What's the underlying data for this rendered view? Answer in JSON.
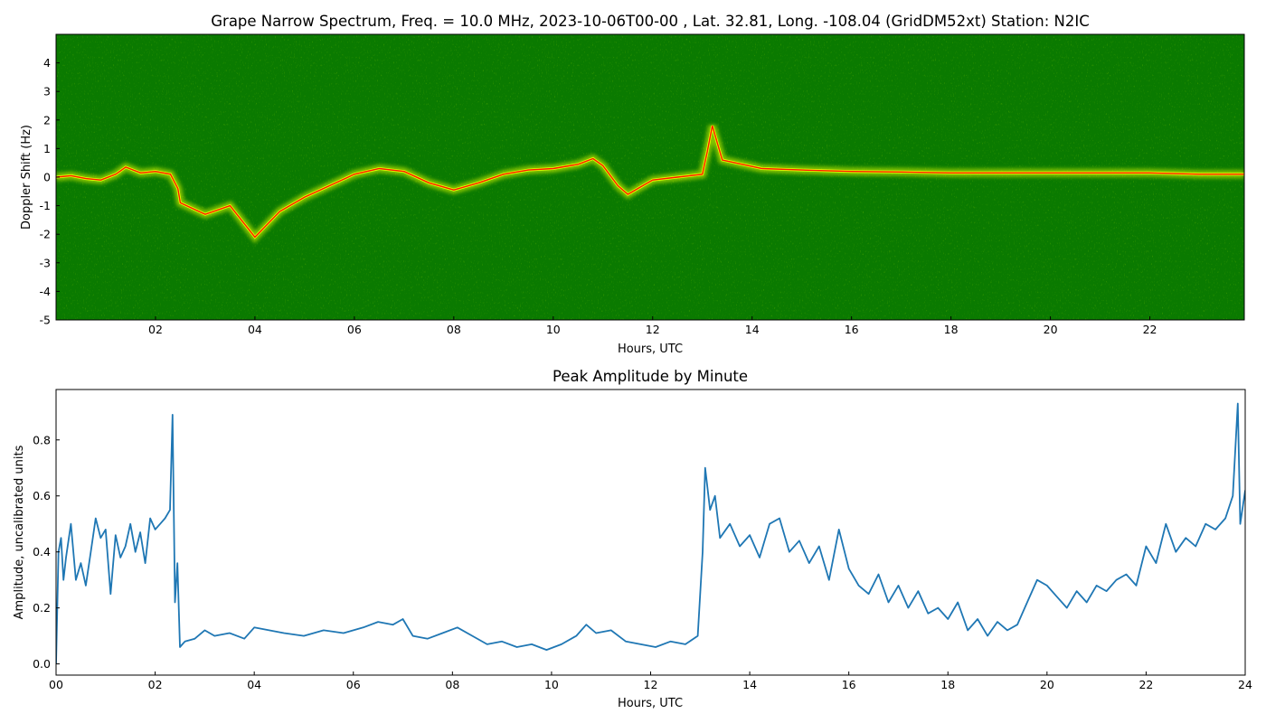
{
  "figure": {
    "background": "#ffffff"
  },
  "chart_data": [
    {
      "type": "heatmap",
      "title": "Grape Narrow Spectrum, Freq. = 10.0 MHz, 2023-10-06T00-00 , Lat.  32.81, Long. -108.04 (GridDM52xt) Station: N2IC",
      "xlabel": "Hours, UTC",
      "ylabel": "Doppler Shift (Hz)",
      "xlim": [
        0,
        23.9
      ],
      "ylim": [
        -5,
        5
      ],
      "xticks": [
        "02",
        "04",
        "06",
        "08",
        "10",
        "12",
        "14",
        "16",
        "18",
        "20",
        "22"
      ],
      "xtick_values": [
        2,
        4,
        6,
        8,
        10,
        12,
        14,
        16,
        18,
        20,
        22
      ],
      "yticks": [
        "-5",
        "-4",
        "-3",
        "-2",
        "-1",
        "0",
        "1",
        "2",
        "3",
        "4"
      ],
      "ytick_values": [
        -5,
        -4,
        -3,
        -2,
        -1,
        0,
        1,
        2,
        3,
        4
      ],
      "colormap": {
        "low": "#0a7a00",
        "mid": "#e8ff00",
        "high": "#ff1a00"
      },
      "peak_trace": {
        "x": [
          0,
          0.3,
          0.6,
          0.9,
          1.2,
          1.4,
          1.7,
          2.0,
          2.3,
          2.45,
          2.5,
          3.0,
          3.5,
          4.0,
          4.5,
          5.0,
          5.5,
          6.0,
          6.5,
          7.0,
          7.5,
          8.0,
          8.5,
          9.0,
          9.5,
          10.0,
          10.5,
          10.8,
          11.0,
          11.3,
          11.5,
          12.0,
          12.5,
          13.0,
          13.1,
          13.2,
          13.4,
          13.8,
          14.2,
          15,
          16,
          17,
          18,
          19,
          20,
          21,
          22,
          23,
          23.9
        ],
        "y": [
          0.0,
          0.05,
          -0.05,
          -0.1,
          0.1,
          0.35,
          0.15,
          0.2,
          0.1,
          -0.4,
          -0.9,
          -1.3,
          -1.0,
          -2.1,
          -1.2,
          -0.7,
          -0.3,
          0.1,
          0.3,
          0.2,
          -0.2,
          -0.45,
          -0.2,
          0.1,
          0.25,
          0.3,
          0.45,
          0.65,
          0.4,
          -0.3,
          -0.6,
          -0.1,
          0.0,
          0.1,
          0.9,
          1.8,
          0.6,
          0.45,
          0.3,
          0.25,
          0.2,
          0.18,
          0.15,
          0.15,
          0.15,
          0.15,
          0.15,
          0.1,
          0.1
        ]
      }
    },
    {
      "type": "line",
      "title": "Peak Amplitude by Minute",
      "xlabel": "Hours, UTC",
      "ylabel": "Amplitude, uncalibrated units",
      "xlim": [
        0,
        24
      ],
      "ylim": [
        -0.04,
        0.98
      ],
      "xticks": [
        "00",
        "02",
        "04",
        "06",
        "08",
        "10",
        "12",
        "14",
        "16",
        "18",
        "20",
        "22",
        "24"
      ],
      "xtick_values": [
        0,
        2,
        4,
        6,
        8,
        10,
        12,
        14,
        16,
        18,
        20,
        22,
        24
      ],
      "yticks": [
        "0.0",
        "0.2",
        "0.4",
        "0.6",
        "0.8"
      ],
      "ytick_values": [
        0,
        0.2,
        0.4,
        0.6,
        0.8
      ],
      "color": "#1f77b4",
      "x": [
        0,
        0.05,
        0.1,
        0.15,
        0.2,
        0.3,
        0.4,
        0.5,
        0.6,
        0.7,
        0.8,
        0.9,
        1.0,
        1.1,
        1.2,
        1.3,
        1.4,
        1.5,
        1.6,
        1.7,
        1.8,
        1.9,
        2.0,
        2.1,
        2.2,
        2.3,
        2.35,
        2.4,
        2.45,
        2.5,
        2.55,
        2.6,
        2.8,
        3.0,
        3.2,
        3.5,
        3.8,
        4.0,
        4.3,
        4.6,
        5.0,
        5.4,
        5.8,
        6.2,
        6.5,
        6.8,
        7.0,
        7.2,
        7.5,
        7.8,
        8.1,
        8.4,
        8.7,
        9.0,
        9.3,
        9.6,
        9.9,
        10.2,
        10.5,
        10.7,
        10.9,
        11.2,
        11.5,
        11.8,
        12.1,
        12.4,
        12.7,
        12.95,
        13.05,
        13.1,
        13.2,
        13.3,
        13.4,
        13.6,
        13.8,
        14.0,
        14.2,
        14.4,
        14.6,
        14.8,
        15.0,
        15.2,
        15.4,
        15.6,
        15.8,
        16.0,
        16.2,
        16.4,
        16.6,
        16.8,
        17.0,
        17.2,
        17.4,
        17.6,
        17.8,
        18.0,
        18.2,
        18.4,
        18.6,
        18.8,
        19.0,
        19.2,
        19.4,
        19.6,
        19.8,
        20.0,
        20.2,
        20.4,
        20.6,
        20.8,
        21.0,
        21.2,
        21.4,
        21.6,
        21.8,
        22.0,
        22.2,
        22.4,
        22.6,
        22.8,
        23.0,
        23.2,
        23.4,
        23.6,
        23.75,
        23.85,
        23.9,
        24.0
      ],
      "y": [
        0.0,
        0.4,
        0.45,
        0.3,
        0.38,
        0.5,
        0.3,
        0.36,
        0.28,
        0.4,
        0.52,
        0.45,
        0.48,
        0.25,
        0.46,
        0.38,
        0.42,
        0.5,
        0.4,
        0.47,
        0.36,
        0.52,
        0.48,
        0.5,
        0.52,
        0.55,
        0.89,
        0.22,
        0.36,
        0.06,
        0.07,
        0.08,
        0.09,
        0.12,
        0.1,
        0.11,
        0.09,
        0.13,
        0.12,
        0.11,
        0.1,
        0.12,
        0.11,
        0.13,
        0.15,
        0.14,
        0.16,
        0.1,
        0.09,
        0.11,
        0.13,
        0.1,
        0.07,
        0.08,
        0.06,
        0.07,
        0.05,
        0.07,
        0.1,
        0.14,
        0.11,
        0.12,
        0.08,
        0.07,
        0.06,
        0.08,
        0.07,
        0.1,
        0.4,
        0.7,
        0.55,
        0.6,
        0.45,
        0.5,
        0.42,
        0.46,
        0.38,
        0.5,
        0.52,
        0.4,
        0.44,
        0.36,
        0.42,
        0.3,
        0.48,
        0.34,
        0.28,
        0.25,
        0.32,
        0.22,
        0.28,
        0.2,
        0.26,
        0.18,
        0.2,
        0.16,
        0.22,
        0.12,
        0.16,
        0.1,
        0.15,
        0.12,
        0.14,
        0.22,
        0.3,
        0.28,
        0.24,
        0.2,
        0.26,
        0.22,
        0.28,
        0.26,
        0.3,
        0.32,
        0.28,
        0.42,
        0.36,
        0.5,
        0.4,
        0.45,
        0.42,
        0.5,
        0.48,
        0.52,
        0.6,
        0.93,
        0.5,
        0.62
      ]
    }
  ]
}
